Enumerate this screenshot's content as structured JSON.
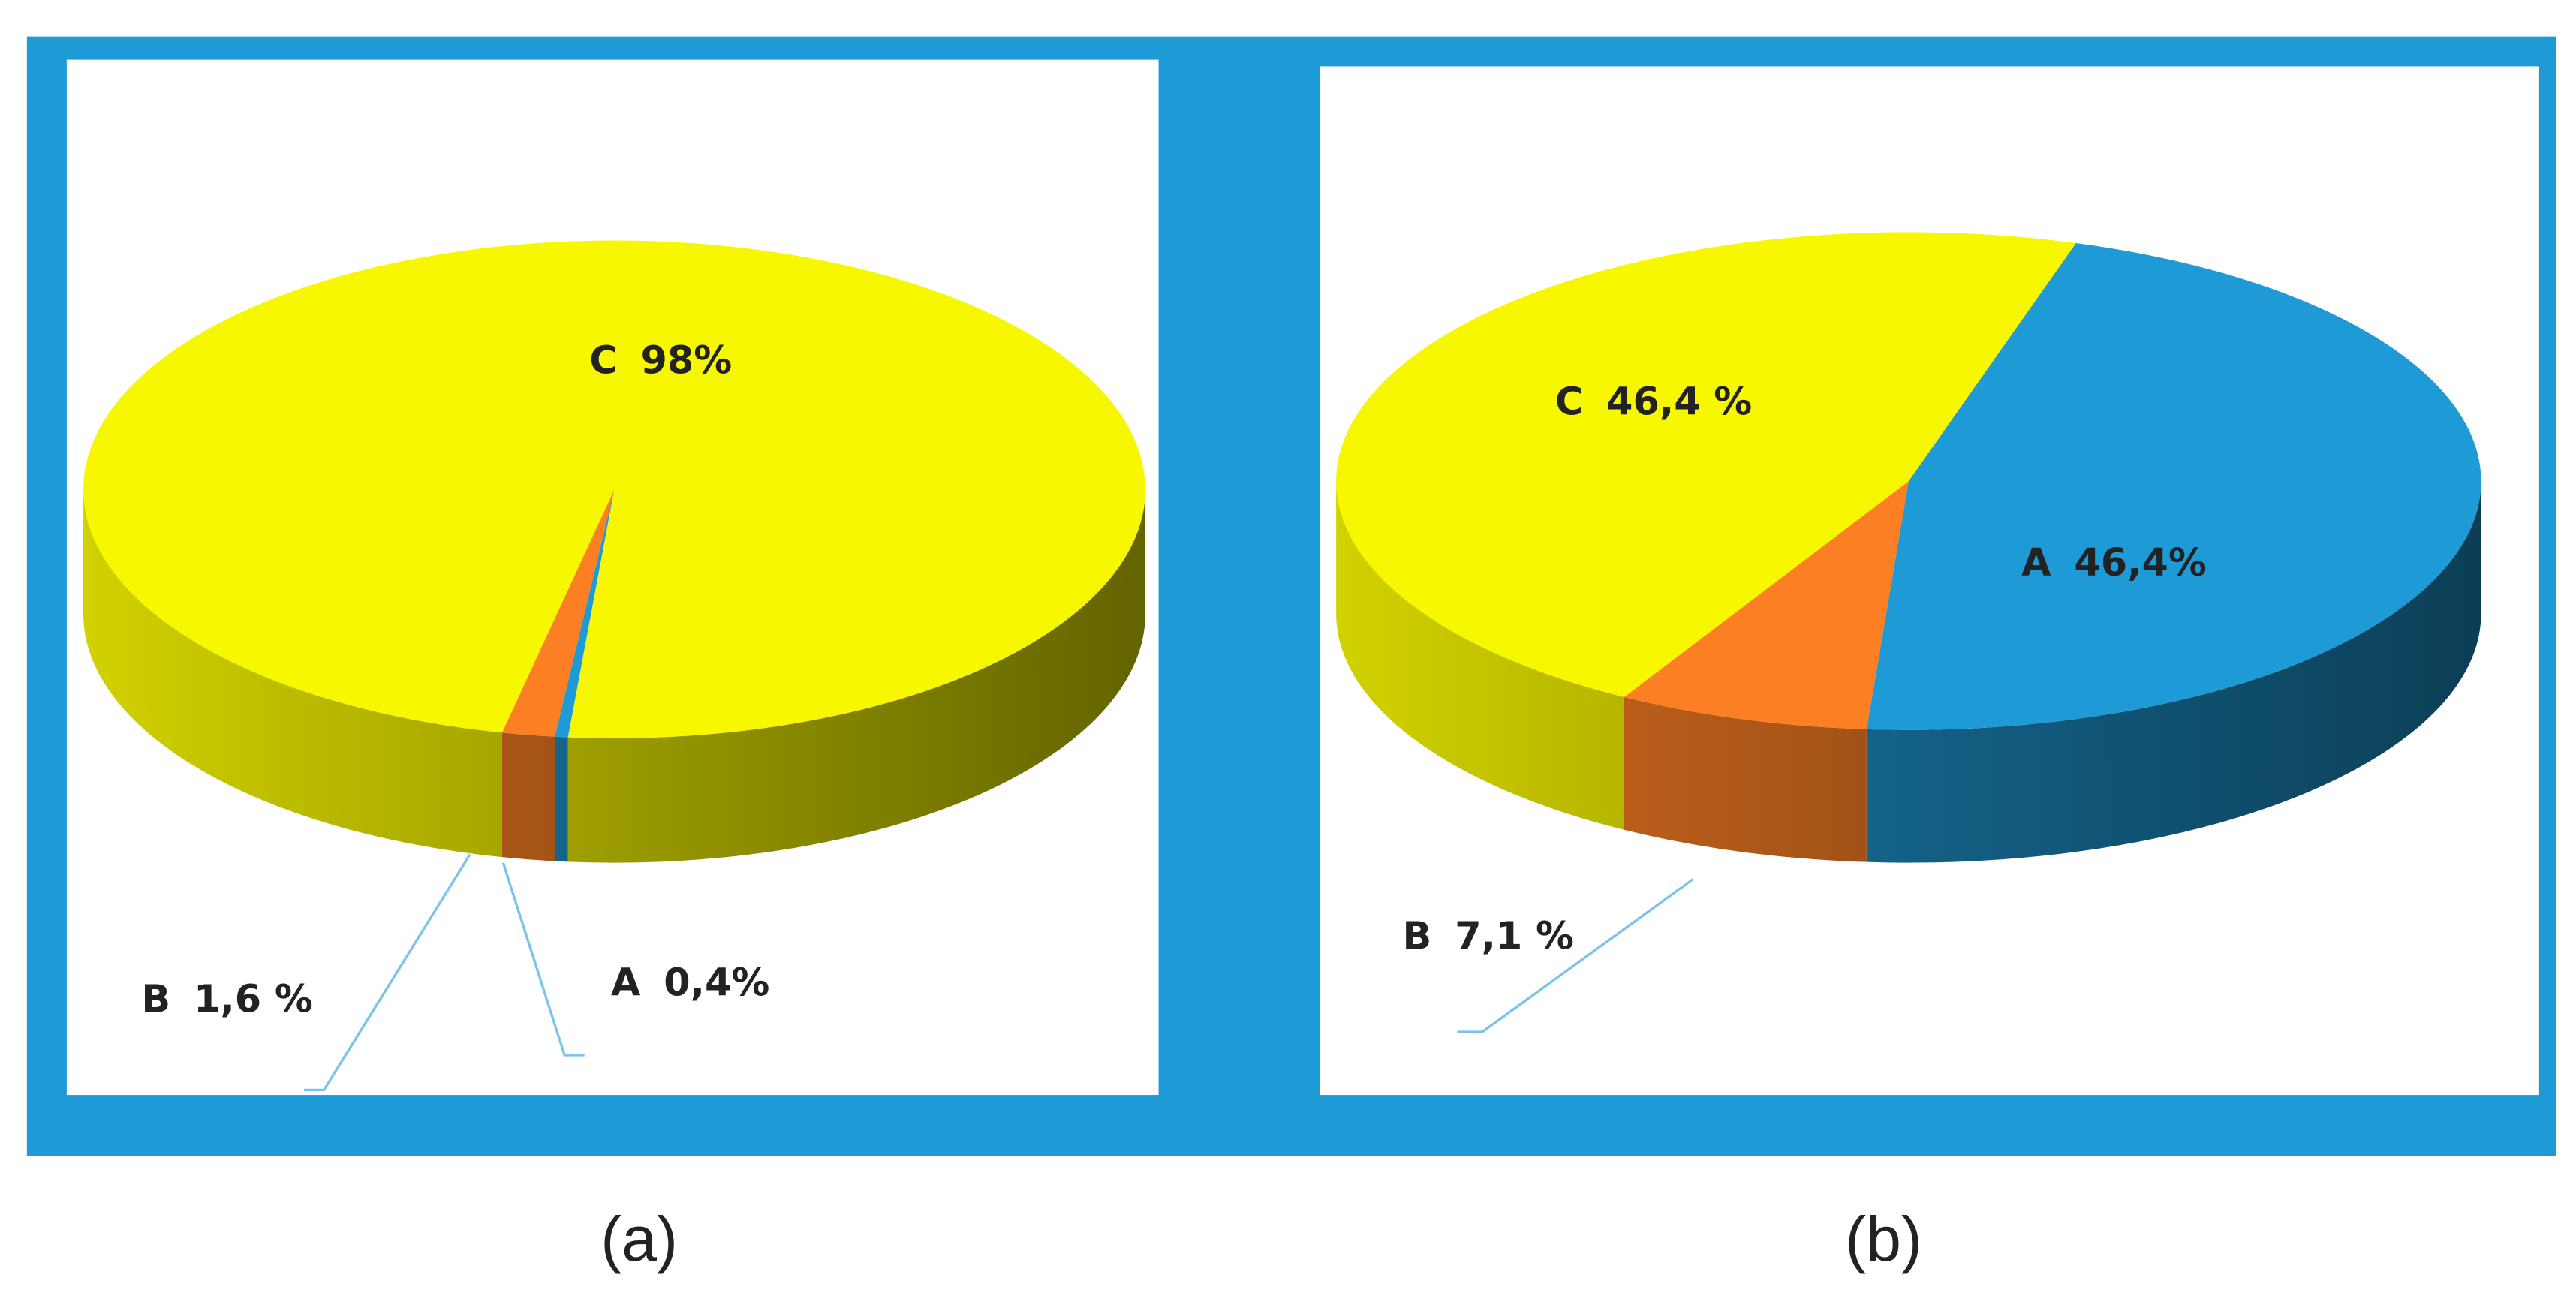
{
  "chart_data": [
    {
      "type": "pie",
      "caption": "(a)",
      "categories": [
        "A",
        "B",
        "C"
      ],
      "values": [
        0.4,
        1.6,
        98
      ],
      "value_labels": [
        "0,4%",
        "1,6 %",
        "98%"
      ],
      "colors": [
        "#1e9ad6",
        "#fd7f23",
        "#f7f700"
      ]
    },
    {
      "type": "pie",
      "caption": "(b)",
      "categories": [
        "A",
        "B",
        "C"
      ],
      "values": [
        46.4,
        7.1,
        46.4
      ],
      "value_labels": [
        "46,4%",
        "7,1 %",
        "46,4 %"
      ],
      "colors": [
        "#1e9ad6",
        "#fd7f23",
        "#f7f700"
      ]
    }
  ]
}
